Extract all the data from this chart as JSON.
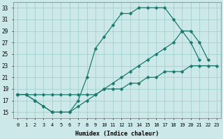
{
  "xlabel": "Humidex (Indice chaleur)",
  "bg_color": "#cce8e8",
  "grid_color": "#99cccc",
  "line_color": "#1a7a6e",
  "xlim": [
    -0.5,
    23.5
  ],
  "ylim": [
    14,
    34
  ],
  "xticks": [
    0,
    1,
    2,
    3,
    4,
    5,
    6,
    7,
    8,
    9,
    10,
    11,
    12,
    13,
    14,
    15,
    16,
    17,
    18,
    19,
    20,
    21,
    22,
    23
  ],
  "yticks": [
    15,
    17,
    19,
    21,
    23,
    25,
    27,
    29,
    31,
    33
  ],
  "line1_x": [
    0,
    1,
    2,
    3,
    4,
    5,
    6,
    7,
    8,
    9,
    10,
    11,
    12,
    13,
    14,
    15,
    16,
    17,
    18,
    19,
    20,
    21
  ],
  "line1_y": [
    18,
    18,
    17,
    16,
    15,
    15,
    15,
    17,
    21,
    26,
    28,
    30,
    32,
    32,
    33,
    33,
    33,
    33,
    31,
    29,
    27,
    24
  ],
  "line2_x": [
    0,
    1,
    2,
    3,
    4,
    5,
    6,
    7,
    8,
    9,
    10,
    11,
    12,
    13,
    14,
    15,
    16,
    17,
    18,
    19,
    20,
    21,
    22
  ],
  "line2_y": [
    18,
    18,
    17,
    16,
    15,
    15,
    15,
    16,
    17,
    18,
    19,
    20,
    21,
    22,
    23,
    24,
    25,
    26,
    27,
    29,
    29,
    27,
    24
  ],
  "line3_x": [
    0,
    1,
    2,
    3,
    4,
    5,
    6,
    7,
    8,
    9,
    10,
    11,
    12,
    13,
    14,
    15,
    16,
    17,
    18,
    19,
    20,
    21,
    22,
    23
  ],
  "line3_y": [
    18,
    18,
    18,
    18,
    18,
    18,
    18,
    18,
    18,
    18,
    19,
    19,
    19,
    20,
    20,
    21,
    21,
    22,
    22,
    22,
    23,
    23,
    23,
    23
  ]
}
